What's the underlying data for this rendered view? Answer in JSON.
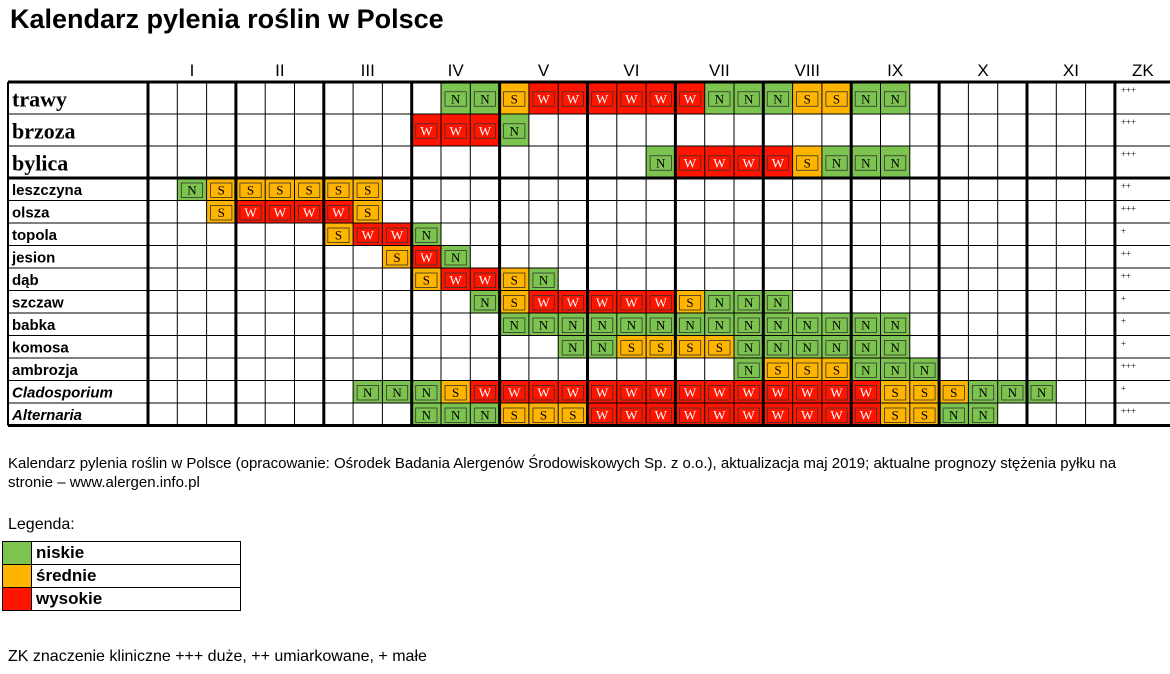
{
  "title": "Kalendarz pylenia roślin w Polsce",
  "colors": {
    "N": "#7dc350",
    "S": "#ffb400",
    "W": "#ff1400"
  },
  "chart_data": {
    "type": "table",
    "title": "Kalendarz pylenia roślin w Polsce",
    "months": [
      "I",
      "II",
      "III",
      "IV",
      "V",
      "VI",
      "VII",
      "VIII",
      "IX",
      "X",
      "XI"
    ],
    "zk_header": "ZK",
    "periods_per_month": 3,
    "rows": [
      {
        "plant": "trawy",
        "style": "big",
        "zk": "+++",
        "cells": [
          "",
          "",
          "",
          "",
          "",
          "",
          "",
          "",
          "",
          "",
          "N",
          "N",
          "S",
          "W",
          "W",
          "W",
          "W",
          "W",
          "W",
          "N",
          "N",
          "N",
          "S",
          "S",
          "N",
          "N",
          "",
          "",
          "",
          "",
          "",
          "",
          ""
        ]
      },
      {
        "plant": "brzoza",
        "style": "big",
        "zk": "+++",
        "cells": [
          "",
          "",
          "",
          "",
          "",
          "",
          "",
          "",
          "",
          "W",
          "W",
          "W",
          "N",
          "",
          "",
          "",
          "",
          "",
          "",
          "",
          "",
          "",
          "",
          "",
          "",
          "",
          "",
          "",
          "",
          "",
          "",
          "",
          ""
        ]
      },
      {
        "plant": "bylica",
        "style": "big",
        "zk": "+++",
        "cells": [
          "",
          "",
          "",
          "",
          "",
          "",
          "",
          "",
          "",
          "",
          "",
          "",
          "",
          "",
          "",
          "",
          "",
          "N",
          "W",
          "W",
          "W",
          "W",
          "S",
          "N",
          "N",
          "N",
          "",
          "",
          "",
          "",
          "",
          "",
          ""
        ]
      },
      {
        "plant": "leszczyna",
        "style": "bold",
        "zk": "++",
        "cells": [
          "",
          "N",
          "S",
          "S",
          "S",
          "S",
          "S",
          "S",
          "",
          "",
          "",
          "",
          "",
          "",
          "",
          "",
          "",
          "",
          "",
          "",
          "",
          "",
          "",
          "",
          "",
          "",
          "",
          "",
          "",
          "",
          "",
          "",
          ""
        ]
      },
      {
        "plant": "olsza",
        "style": "bold",
        "zk": "+++",
        "cells": [
          "",
          "",
          "S",
          "W",
          "W",
          "W",
          "W",
          "S",
          "",
          "",
          "",
          "",
          "",
          "",
          "",
          "",
          "",
          "",
          "",
          "",
          "",
          "",
          "",
          "",
          "",
          "",
          "",
          "",
          "",
          "",
          "",
          "",
          ""
        ]
      },
      {
        "plant": "topola",
        "style": "bold",
        "zk": "+",
        "cells": [
          "",
          "",
          "",
          "",
          "",
          "",
          "S",
          "W",
          "W",
          "N",
          "",
          "",
          "",
          "",
          "",
          "",
          "",
          "",
          "",
          "",
          "",
          "",
          "",
          "",
          "",
          "",
          "",
          "",
          "",
          "",
          "",
          "",
          ""
        ]
      },
      {
        "plant": "jesion",
        "style": "bold",
        "zk": "++",
        "cells": [
          "",
          "",
          "",
          "",
          "",
          "",
          "",
          "",
          "S",
          "W",
          "N",
          "",
          "",
          "",
          "",
          "",
          "",
          "",
          "",
          "",
          "",
          "",
          "",
          "",
          "",
          "",
          "",
          "",
          "",
          "",
          "",
          "",
          ""
        ]
      },
      {
        "plant": "dąb",
        "style": "bold",
        "zk": "++",
        "cells": [
          "",
          "",
          "",
          "",
          "",
          "",
          "",
          "",
          "",
          "S",
          "W",
          "W",
          "S",
          "N",
          "",
          "",
          "",
          "",
          "",
          "",
          "",
          "",
          "",
          "",
          "",
          "",
          "",
          "",
          "",
          "",
          "",
          "",
          ""
        ]
      },
      {
        "plant": "szczaw",
        "style": "bold",
        "zk": "+",
        "cells": [
          "",
          "",
          "",
          "",
          "",
          "",
          "",
          "",
          "",
          "",
          "",
          "N",
          "S",
          "W",
          "W",
          "W",
          "W",
          "W",
          "S",
          "N",
          "N",
          "N",
          "",
          "",
          "",
          "",
          "",
          "",
          "",
          "",
          "",
          "",
          ""
        ]
      },
      {
        "plant": "babka",
        "style": "bold",
        "zk": "+",
        "cells": [
          "",
          "",
          "",
          "",
          "",
          "",
          "",
          "",
          "",
          "",
          "",
          "",
          "N",
          "N",
          "N",
          "N",
          "N",
          "N",
          "N",
          "N",
          "N",
          "N",
          "N",
          "N",
          "N",
          "N",
          "",
          "",
          "",
          "",
          "",
          "",
          ""
        ]
      },
      {
        "plant": "komosa",
        "style": "bold",
        "zk": "+",
        "cells": [
          "",
          "",
          "",
          "",
          "",
          "",
          "",
          "",
          "",
          "",
          "",
          "",
          "",
          "",
          "N",
          "N",
          "S",
          "S",
          "S",
          "S",
          "N",
          "N",
          "N",
          "N",
          "N",
          "N",
          "",
          "",
          "",
          "",
          "",
          "",
          ""
        ]
      },
      {
        "plant": "ambrozja",
        "style": "bold",
        "zk": "+++",
        "cells": [
          "",
          "",
          "",
          "",
          "",
          "",
          "",
          "",
          "",
          "",
          "",
          "",
          "",
          "",
          "",
          "",
          "",
          "",
          "",
          "",
          "N",
          "S",
          "S",
          "S",
          "N",
          "N",
          "N",
          "",
          "",
          "",
          "",
          "",
          ""
        ]
      },
      {
        "plant": "Cladosporium",
        "style": "italic",
        "zk": "+",
        "cells": [
          "",
          "",
          "",
          "",
          "",
          "",
          "",
          "N",
          "N",
          "N",
          "S",
          "W",
          "W",
          "W",
          "W",
          "W",
          "W",
          "W",
          "W",
          "W",
          "W",
          "W",
          "W",
          "W",
          "W",
          "S",
          "S",
          "S",
          "N",
          "N",
          "N",
          "",
          ""
        ]
      },
      {
        "plant": "Alternaria",
        "style": "italic",
        "zk": "+++",
        "cells": [
          "",
          "",
          "",
          "",
          "",
          "",
          "",
          "",
          "",
          "N",
          "N",
          "N",
          "S",
          "S",
          "S",
          "W",
          "W",
          "W",
          "W",
          "W",
          "W",
          "W",
          "W",
          "W",
          "W",
          "S",
          "S",
          "N",
          "N",
          "",
          "",
          "",
          ""
        ]
      }
    ]
  },
  "description": "Kalendarz pylenia roślin w Polsce (opracowanie: Ośrodek Badania Alergenów Środowiskowych Sp. z o.o.), aktualizacja maj 2019; aktualne prognozy stężenia pyłku na stronie – www.alergen.info.pl",
  "legend": {
    "title": "Legenda:",
    "items": [
      {
        "label": "niskie",
        "color": "#7dc350"
      },
      {
        "label": "średnie",
        "color": "#ffb400"
      },
      {
        "label": "wysokie",
        "color": "#ff1400"
      }
    ]
  },
  "zk_note": "ZK znaczenie kliniczne +++ duże, ++ umiarkowane, + małe"
}
